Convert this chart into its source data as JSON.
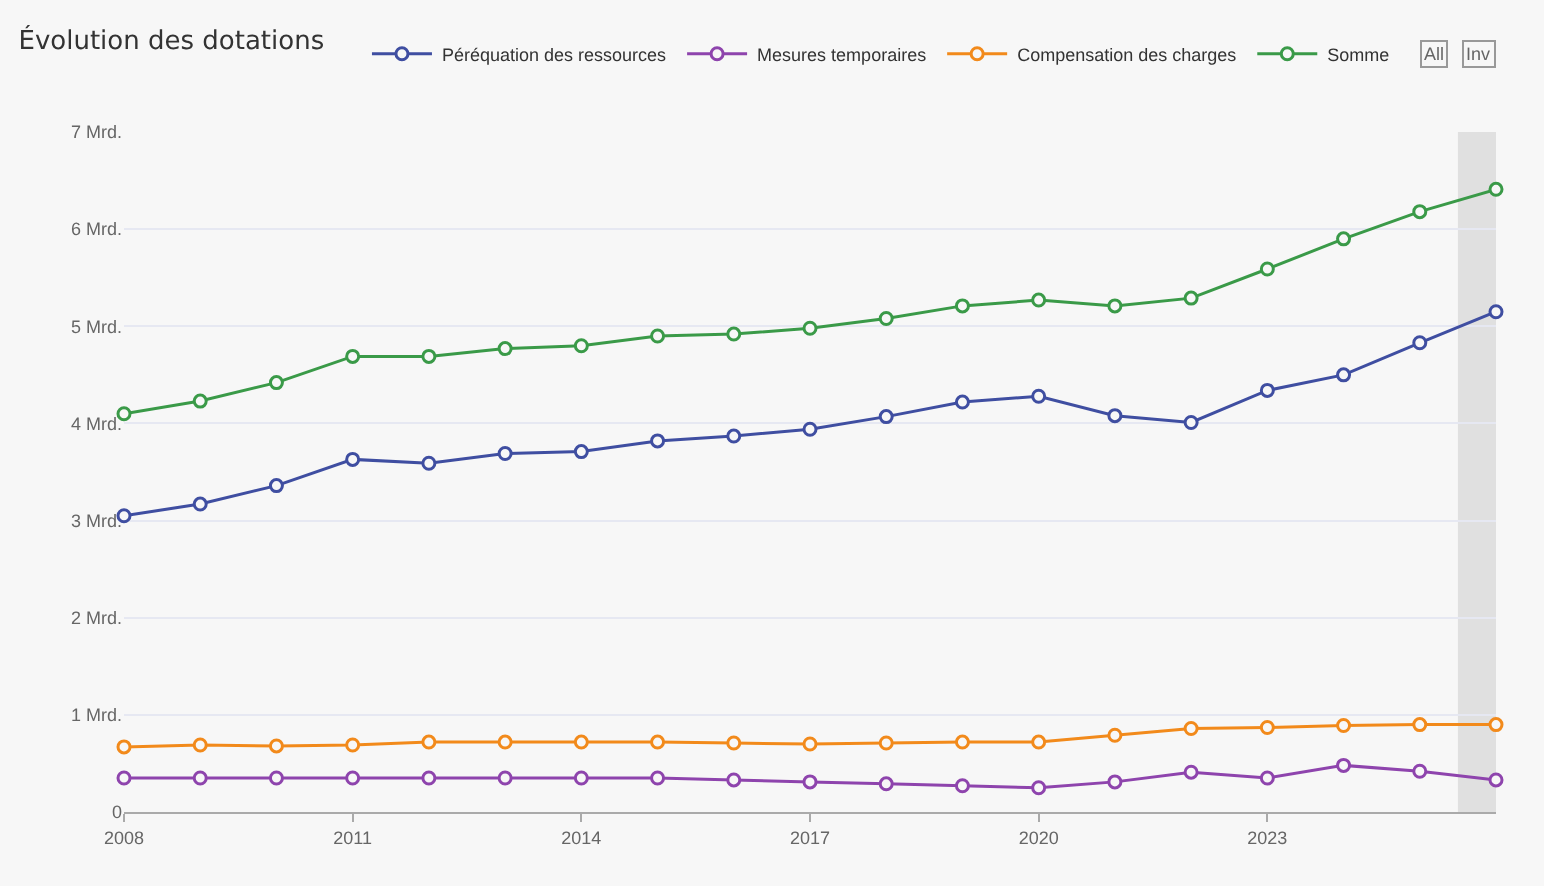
{
  "chart_data": {
    "type": "line",
    "title": "Évolution des dotations",
    "x": [
      2008,
      2009,
      2010,
      2011,
      2012,
      2013,
      2014,
      2015,
      2016,
      2017,
      2018,
      2019,
      2020,
      2021,
      2022,
      2023,
      2024,
      2025,
      2026
    ],
    "series": [
      {
        "name": "Péréquation des ressources",
        "color": "#3f4ea1",
        "values": [
          3.05,
          3.17,
          3.36,
          3.63,
          3.59,
          3.69,
          3.71,
          3.82,
          3.87,
          3.94,
          4.07,
          4.22,
          4.28,
          4.08,
          4.01,
          4.34,
          4.5,
          4.83,
          5.15
        ]
      },
      {
        "name": "Mesures temporaires",
        "color": "#8e44ad",
        "values": [
          0.35,
          0.35,
          0.35,
          0.35,
          0.35,
          0.35,
          0.35,
          0.35,
          0.33,
          0.31,
          0.29,
          0.27,
          0.25,
          0.31,
          0.41,
          0.35,
          0.48,
          0.42,
          0.33
        ]
      },
      {
        "name": "Compensation des charges",
        "color": "#f28a1b",
        "values": [
          0.67,
          0.69,
          0.68,
          0.69,
          0.72,
          0.72,
          0.72,
          0.72,
          0.71,
          0.7,
          0.71,
          0.72,
          0.72,
          0.79,
          0.86,
          0.87,
          0.89,
          0.9,
          0.9
        ]
      },
      {
        "name": "Somme",
        "color": "#3a9a48",
        "values": [
          4.1,
          4.23,
          4.42,
          4.69,
          4.69,
          4.77,
          4.8,
          4.9,
          4.92,
          4.98,
          5.08,
          5.21,
          5.27,
          5.21,
          5.29,
          5.59,
          5.9,
          6.18,
          6.41
        ]
      }
    ],
    "xlim": [
      2008,
      2026
    ],
    "xticks": [
      2008,
      2011,
      2014,
      2017,
      2020,
      2023
    ],
    "ylim": [
      0,
      7
    ],
    "yticks": [
      0,
      {
        "value": 1,
        "label": "1 Mrd."
      },
      {
        "value": 2,
        "label": "2 Mrd."
      },
      {
        "value": 3,
        "label": "3 Mrd."
      },
      {
        "value": 4,
        "label": "4 Mrd."
      },
      {
        "value": 5,
        "label": "5 Mrd."
      },
      {
        "value": 6,
        "label": "6 Mrd."
      },
      {
        "value": 7,
        "label": "7 Mrd."
      }
    ],
    "bands": [
      {
        "axis": "x",
        "from": 2025.5,
        "to": 2026,
        "color": "#e0e0e0"
      }
    ],
    "annotations": [
      "All",
      "Inv"
    ],
    "grid": "y",
    "legend": "top right",
    "marker": "circle",
    "line_style": "solid"
  }
}
